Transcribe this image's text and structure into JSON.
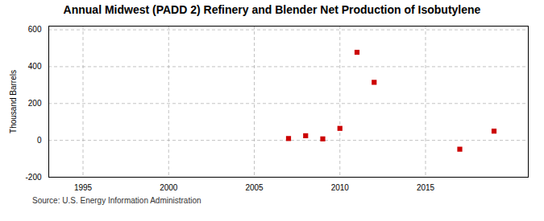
{
  "chart_data": {
    "type": "scatter",
    "title": "Annual Midwest (PADD 2) Refinery and Blender Net Production of Isobutylene",
    "ylabel": "Thousand Barrels",
    "source": "Source: U.S. Energy Information Administration",
    "x": [
      2007,
      2008,
      2009,
      2010,
      2011,
      2012,
      2017,
      2019
    ],
    "values": [
      10,
      25,
      8,
      65,
      478,
      315,
      -48,
      50
    ],
    "color": "#cc0000",
    "marker": "square",
    "xlim": [
      1993,
      2021
    ],
    "ylim": [
      -200,
      620
    ],
    "xticks": [
      1995,
      2000,
      2005,
      2010,
      2015
    ],
    "yticks": [
      -200,
      0,
      200,
      400,
      600
    ],
    "grid": true
  }
}
